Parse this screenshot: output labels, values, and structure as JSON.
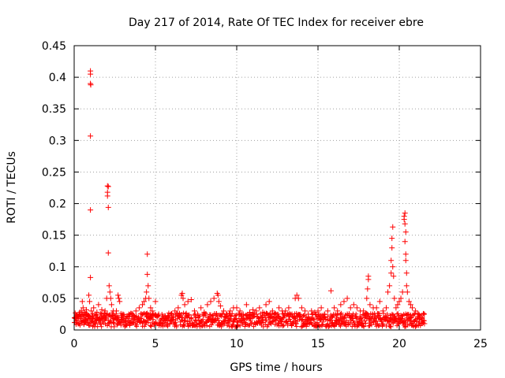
{
  "chart_data": {
    "type": "scatter",
    "title": "Day 217 of 2014, Rate Of TEC Index for receiver ebre",
    "xlabel": "GPS time / hours",
    "ylabel": "ROTI / TECUs",
    "xlim": [
      0,
      25
    ],
    "ylim": [
      0,
      0.45
    ],
    "xticks": [
      "0",
      "5",
      "10",
      "15",
      "20",
      "25"
    ],
    "yticks": [
      "0",
      "0.05",
      "0.1",
      "0.15",
      "0.2",
      "0.25",
      "0.3",
      "0.35",
      "0.4",
      "0.45"
    ],
    "grid": true,
    "marker": "+",
    "series_color": "#ff0000",
    "series": [
      {
        "points": [
          [
            0.05,
            0.012
          ],
          [
            0.1,
            0.018
          ],
          [
            0.15,
            0.015
          ],
          [
            0.2,
            0.022
          ],
          [
            0.25,
            0.02
          ],
          [
            0.3,
            0.025
          ],
          [
            0.35,
            0.028
          ],
          [
            0.4,
            0.018
          ],
          [
            0.45,
            0.03
          ],
          [
            0.5,
            0.045
          ],
          [
            0.55,
            0.035
          ],
          [
            0.6,
            0.02
          ],
          [
            0.65,
            0.028
          ],
          [
            0.7,
            0.015
          ],
          [
            0.75,
            0.032
          ],
          [
            0.8,
            0.025
          ],
          [
            0.85,
            0.018
          ],
          [
            0.9,
            0.055
          ],
          [
            0.95,
            0.045
          ],
          [
            1.0,
            0.41
          ],
          [
            1.0,
            0.405
          ],
          [
            1.0,
            0.39
          ],
          [
            1.02,
            0.388
          ],
          [
            1.0,
            0.307
          ],
          [
            1.0,
            0.19
          ],
          [
            1.0,
            0.083
          ],
          [
            1.05,
            0.03
          ],
          [
            1.1,
            0.022
          ],
          [
            1.15,
            0.018
          ],
          [
            1.2,
            0.035
          ],
          [
            1.3,
            0.025
          ],
          [
            1.4,
            0.028
          ],
          [
            1.5,
            0.04
          ],
          [
            1.6,
            0.018
          ],
          [
            1.7,
            0.032
          ],
          [
            1.8,
            0.022
          ],
          [
            1.9,
            0.03
          ],
          [
            2.0,
            0.05
          ],
          [
            2.05,
            0.228
          ],
          [
            2.1,
            0.227
          ],
          [
            2.05,
            0.218
          ],
          [
            2.05,
            0.212
          ],
          [
            2.1,
            0.194
          ],
          [
            2.1,
            0.122
          ],
          [
            2.15,
            0.07
          ],
          [
            2.2,
            0.06
          ],
          [
            2.25,
            0.05
          ],
          [
            2.3,
            0.04
          ],
          [
            2.4,
            0.03
          ],
          [
            2.5,
            0.022
          ],
          [
            2.6,
            0.03
          ],
          [
            2.7,
            0.055
          ],
          [
            2.75,
            0.05
          ],
          [
            2.8,
            0.045
          ],
          [
            2.9,
            0.02
          ],
          [
            3.0,
            0.025
          ],
          [
            3.2,
            0.018
          ],
          [
            3.4,
            0.022
          ],
          [
            3.6,
            0.025
          ],
          [
            3.8,
            0.03
          ],
          [
            4.0,
            0.035
          ],
          [
            4.2,
            0.04
          ],
          [
            4.3,
            0.045
          ],
          [
            4.4,
            0.05
          ],
          [
            4.45,
            0.06
          ],
          [
            4.5,
            0.12
          ],
          [
            4.5,
            0.088
          ],
          [
            4.55,
            0.07
          ],
          [
            4.6,
            0.05
          ],
          [
            4.7,
            0.035
          ],
          [
            4.8,
            0.03
          ],
          [
            5.0,
            0.045
          ],
          [
            5.2,
            0.025
          ],
          [
            5.4,
            0.018
          ],
          [
            5.6,
            0.022
          ],
          [
            5.8,
            0.02
          ],
          [
            6.0,
            0.025
          ],
          [
            6.2,
            0.03
          ],
          [
            6.4,
            0.035
          ],
          [
            6.6,
            0.055
          ],
          [
            6.65,
            0.058
          ],
          [
            6.7,
            0.05
          ],
          [
            6.8,
            0.04
          ],
          [
            7.0,
            0.045
          ],
          [
            7.2,
            0.048
          ],
          [
            7.4,
            0.03
          ],
          [
            7.6,
            0.025
          ],
          [
            7.8,
            0.035
          ],
          [
            8.0,
            0.028
          ],
          [
            8.2,
            0.04
          ],
          [
            8.4,
            0.045
          ],
          [
            8.6,
            0.05
          ],
          [
            8.8,
            0.058
          ],
          [
            8.85,
            0.055
          ],
          [
            8.9,
            0.045
          ],
          [
            9.0,
            0.038
          ],
          [
            9.2,
            0.03
          ],
          [
            9.4,
            0.025
          ],
          [
            9.6,
            0.03
          ],
          [
            9.8,
            0.035
          ],
          [
            10.0,
            0.035
          ],
          [
            10.2,
            0.03
          ],
          [
            10.4,
            0.025
          ],
          [
            10.6,
            0.04
          ],
          [
            10.8,
            0.028
          ],
          [
            11.0,
            0.032
          ],
          [
            11.2,
            0.03
          ],
          [
            11.4,
            0.035
          ],
          [
            11.6,
            0.028
          ],
          [
            11.8,
            0.04
          ],
          [
            12.0,
            0.045
          ],
          [
            12.2,
            0.03
          ],
          [
            12.4,
            0.025
          ],
          [
            12.6,
            0.035
          ],
          [
            12.8,
            0.03
          ],
          [
            13.0,
            0.03
          ],
          [
            13.2,
            0.035
          ],
          [
            13.4,
            0.025
          ],
          [
            13.6,
            0.05
          ],
          [
            13.7,
            0.055
          ],
          [
            13.8,
            0.05
          ],
          [
            14.0,
            0.035
          ],
          [
            14.2,
            0.03
          ],
          [
            14.4,
            0.025
          ],
          [
            14.6,
            0.03
          ],
          [
            14.8,
            0.028
          ],
          [
            15.0,
            0.03
          ],
          [
            15.2,
            0.035
          ],
          [
            15.4,
            0.025
          ],
          [
            15.6,
            0.03
          ],
          [
            15.8,
            0.062
          ],
          [
            16.0,
            0.035
          ],
          [
            16.2,
            0.03
          ],
          [
            16.4,
            0.04
          ],
          [
            16.6,
            0.045
          ],
          [
            16.8,
            0.05
          ],
          [
            17.0,
            0.035
          ],
          [
            17.2,
            0.04
          ],
          [
            17.4,
            0.035
          ],
          [
            17.6,
            0.03
          ],
          [
            17.8,
            0.03
          ],
          [
            18.0,
            0.05
          ],
          [
            18.05,
            0.065
          ],
          [
            18.1,
            0.08
          ],
          [
            18.1,
            0.085
          ],
          [
            18.2,
            0.04
          ],
          [
            18.4,
            0.035
          ],
          [
            18.6,
            0.035
          ],
          [
            18.8,
            0.045
          ],
          [
            19.0,
            0.03
          ],
          [
            19.2,
            0.035
          ],
          [
            19.3,
            0.06
          ],
          [
            19.4,
            0.07
          ],
          [
            19.5,
            0.09
          ],
          [
            19.5,
            0.11
          ],
          [
            19.55,
            0.13
          ],
          [
            19.55,
            0.145
          ],
          [
            19.6,
            0.163
          ],
          [
            19.6,
            0.1
          ],
          [
            19.65,
            0.085
          ],
          [
            19.7,
            0.05
          ],
          [
            19.8,
            0.035
          ],
          [
            19.9,
            0.04
          ],
          [
            20.0,
            0.045
          ],
          [
            20.1,
            0.05
          ],
          [
            20.2,
            0.06
          ],
          [
            20.3,
            0.18
          ],
          [
            20.35,
            0.185
          ],
          [
            20.3,
            0.175
          ],
          [
            20.35,
            0.168
          ],
          [
            20.4,
            0.155
          ],
          [
            20.35,
            0.14
          ],
          [
            20.4,
            0.12
          ],
          [
            20.4,
            0.11
          ],
          [
            20.45,
            0.09
          ],
          [
            20.45,
            0.07
          ],
          [
            20.5,
            0.06
          ],
          [
            20.6,
            0.045
          ],
          [
            20.7,
            0.04
          ],
          [
            20.8,
            0.035
          ],
          [
            21.0,
            0.03
          ],
          [
            21.2,
            0.025
          ],
          [
            21.4,
            0.02
          ],
          [
            21.5,
            0.015
          ],
          [
            21.55,
            0.01
          ]
        ]
      }
    ]
  }
}
